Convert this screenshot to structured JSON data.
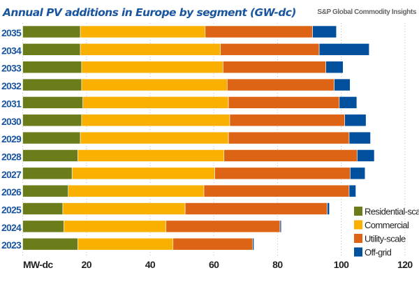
{
  "chart_data": {
    "type": "bar",
    "orientation": "horizontal",
    "stacked": true,
    "title": "Annual PV additions in Europe by segment (GW-dc)",
    "source": "S&P Global Commodity Insights",
    "xlabel": "MW-dc",
    "xlim": [
      0,
      120
    ],
    "xticks": [
      "20",
      "40",
      "60",
      "80",
      "100",
      "120"
    ],
    "grid": "vertical dotted",
    "legend_position": "bottom-right",
    "categories": [
      "2035",
      "2034",
      "2033",
      "2032",
      "2031",
      "2030",
      "2029",
      "2028",
      "2027",
      "2026",
      "2025",
      "2024",
      "2023"
    ],
    "series": [
      {
        "name": "Residential-scale",
        "color": "#6b7d1a",
        "values": [
          18.1,
          18.1,
          18.5,
          18.5,
          18.9,
          18.5,
          18.1,
          17.3,
          15.5,
          14.3,
          12.6,
          12.9,
          17.3
        ]
      },
      {
        "name": "Commercial",
        "color": "#f9b000",
        "values": [
          39.2,
          44.0,
          44.4,
          45.7,
          45.7,
          46.5,
          46.5,
          45.9,
          44.8,
          42.6,
          38.4,
          32.1,
          29.9
        ]
      },
      {
        "name": "Utility-scale",
        "color": "#dc6414",
        "values": [
          33.7,
          31.0,
          32.3,
          33.6,
          34.8,
          36.1,
          37.9,
          41.8,
          42.5,
          45.6,
          44.6,
          35.8,
          25.0
        ]
      },
      {
        "name": "Off-grid",
        "color": "#00509d",
        "values": [
          7.5,
          15.7,
          5.4,
          5.0,
          5.5,
          6.7,
          6.7,
          5.4,
          4.7,
          2.1,
          0.7,
          0.4,
          0.4
        ]
      }
    ]
  }
}
